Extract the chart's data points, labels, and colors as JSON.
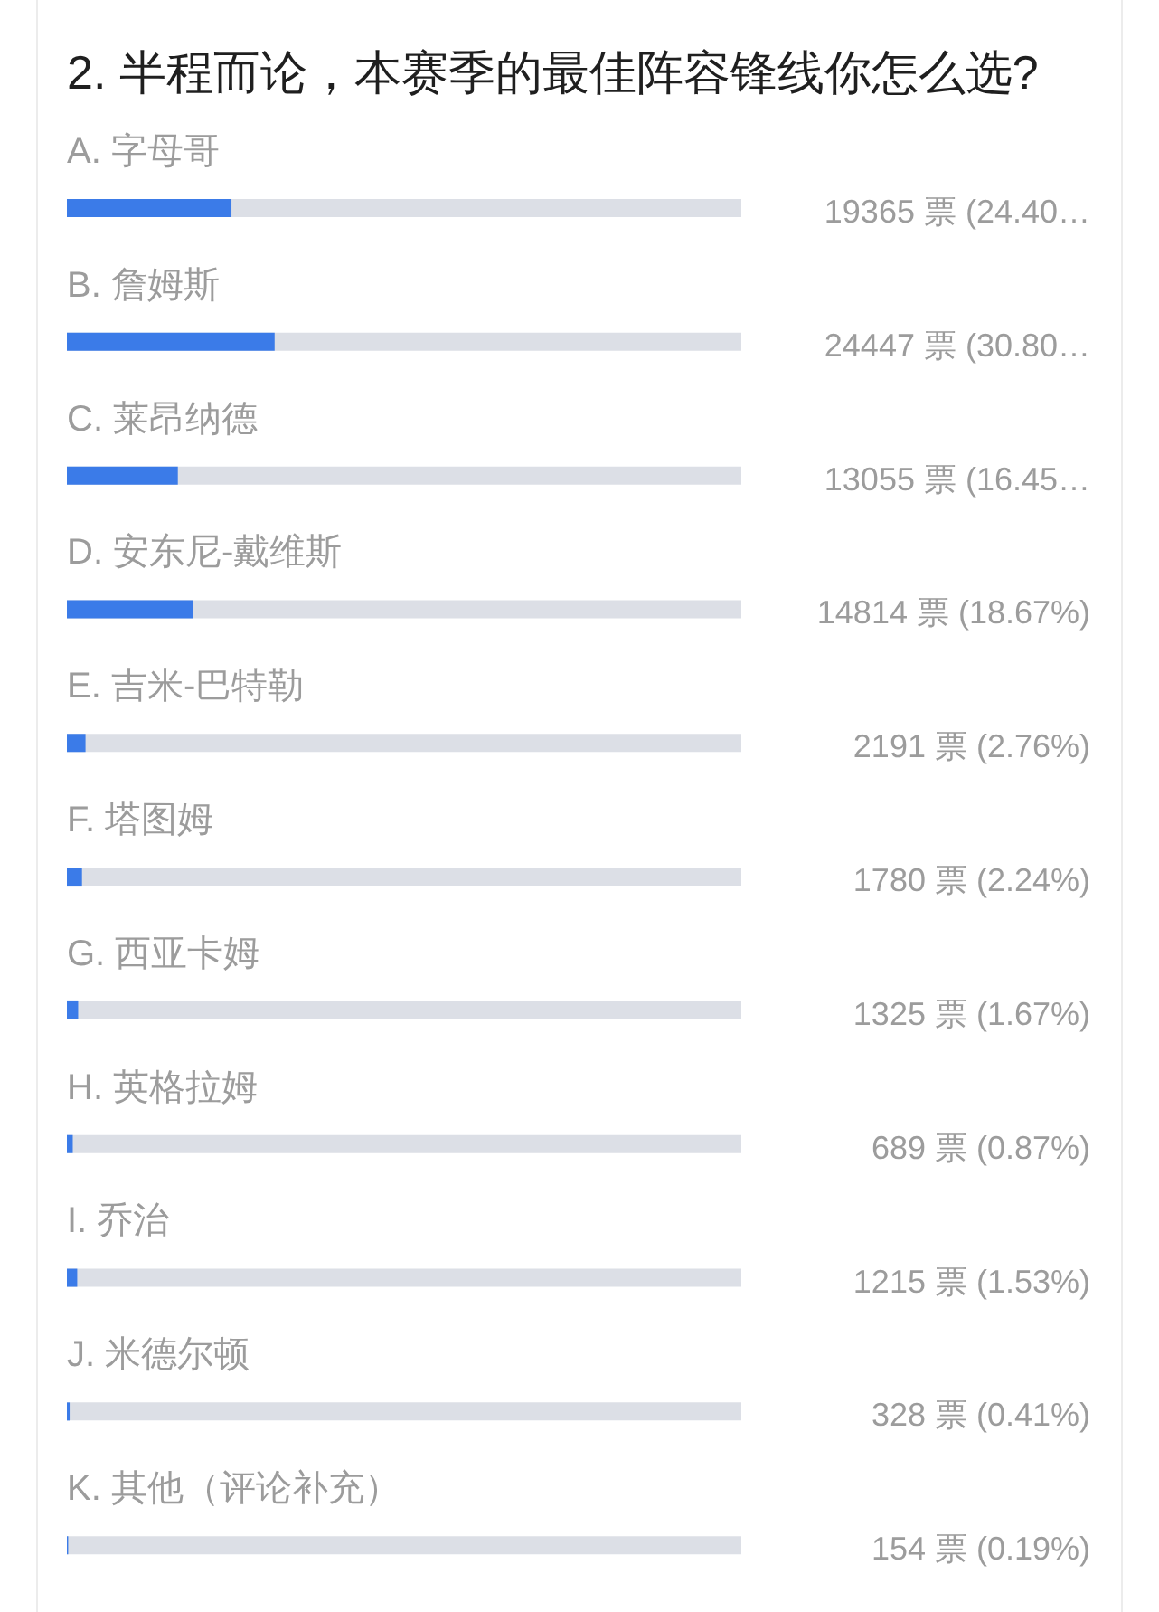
{
  "chart_data": {
    "type": "bar",
    "orientation": "horizontal",
    "title": "2. 半程而论，本赛季的最佳阵容锋线你怎么选?",
    "categories": [
      "A. 字母哥",
      "B. 詹姆斯",
      "C. 莱昂纳德",
      "D. 安东尼-戴维斯",
      "E. 吉米-巴特勒",
      "F. 塔图姆",
      "G. 西亚卡姆",
      "H. 英格拉姆",
      "I. 乔治",
      "J. 米德尔顿",
      "K. 其他（评论补充）"
    ],
    "values": [
      24.4,
      30.8,
      16.45,
      18.67,
      2.76,
      2.24,
      1.67,
      0.87,
      1.53,
      0.41,
      0.19
    ],
    "color": "#3b7be8",
    "xlim": [
      0,
      100
    ],
    "tick_labels": "y",
    "value_labels": [
      "19365 票 (24.40…",
      "24447 票 (30.80…",
      "13055 票 (16.45…",
      "14814 票 (18.67%)",
      "2191 票 (2.76%)",
      "1780 票 (2.24%)",
      "1325 票 (1.67%)",
      "689 票 (0.87%)",
      "1215 票 (1.53%)",
      "328 票 (0.41%)",
      "154 票 (0.19%)"
    ]
  }
}
